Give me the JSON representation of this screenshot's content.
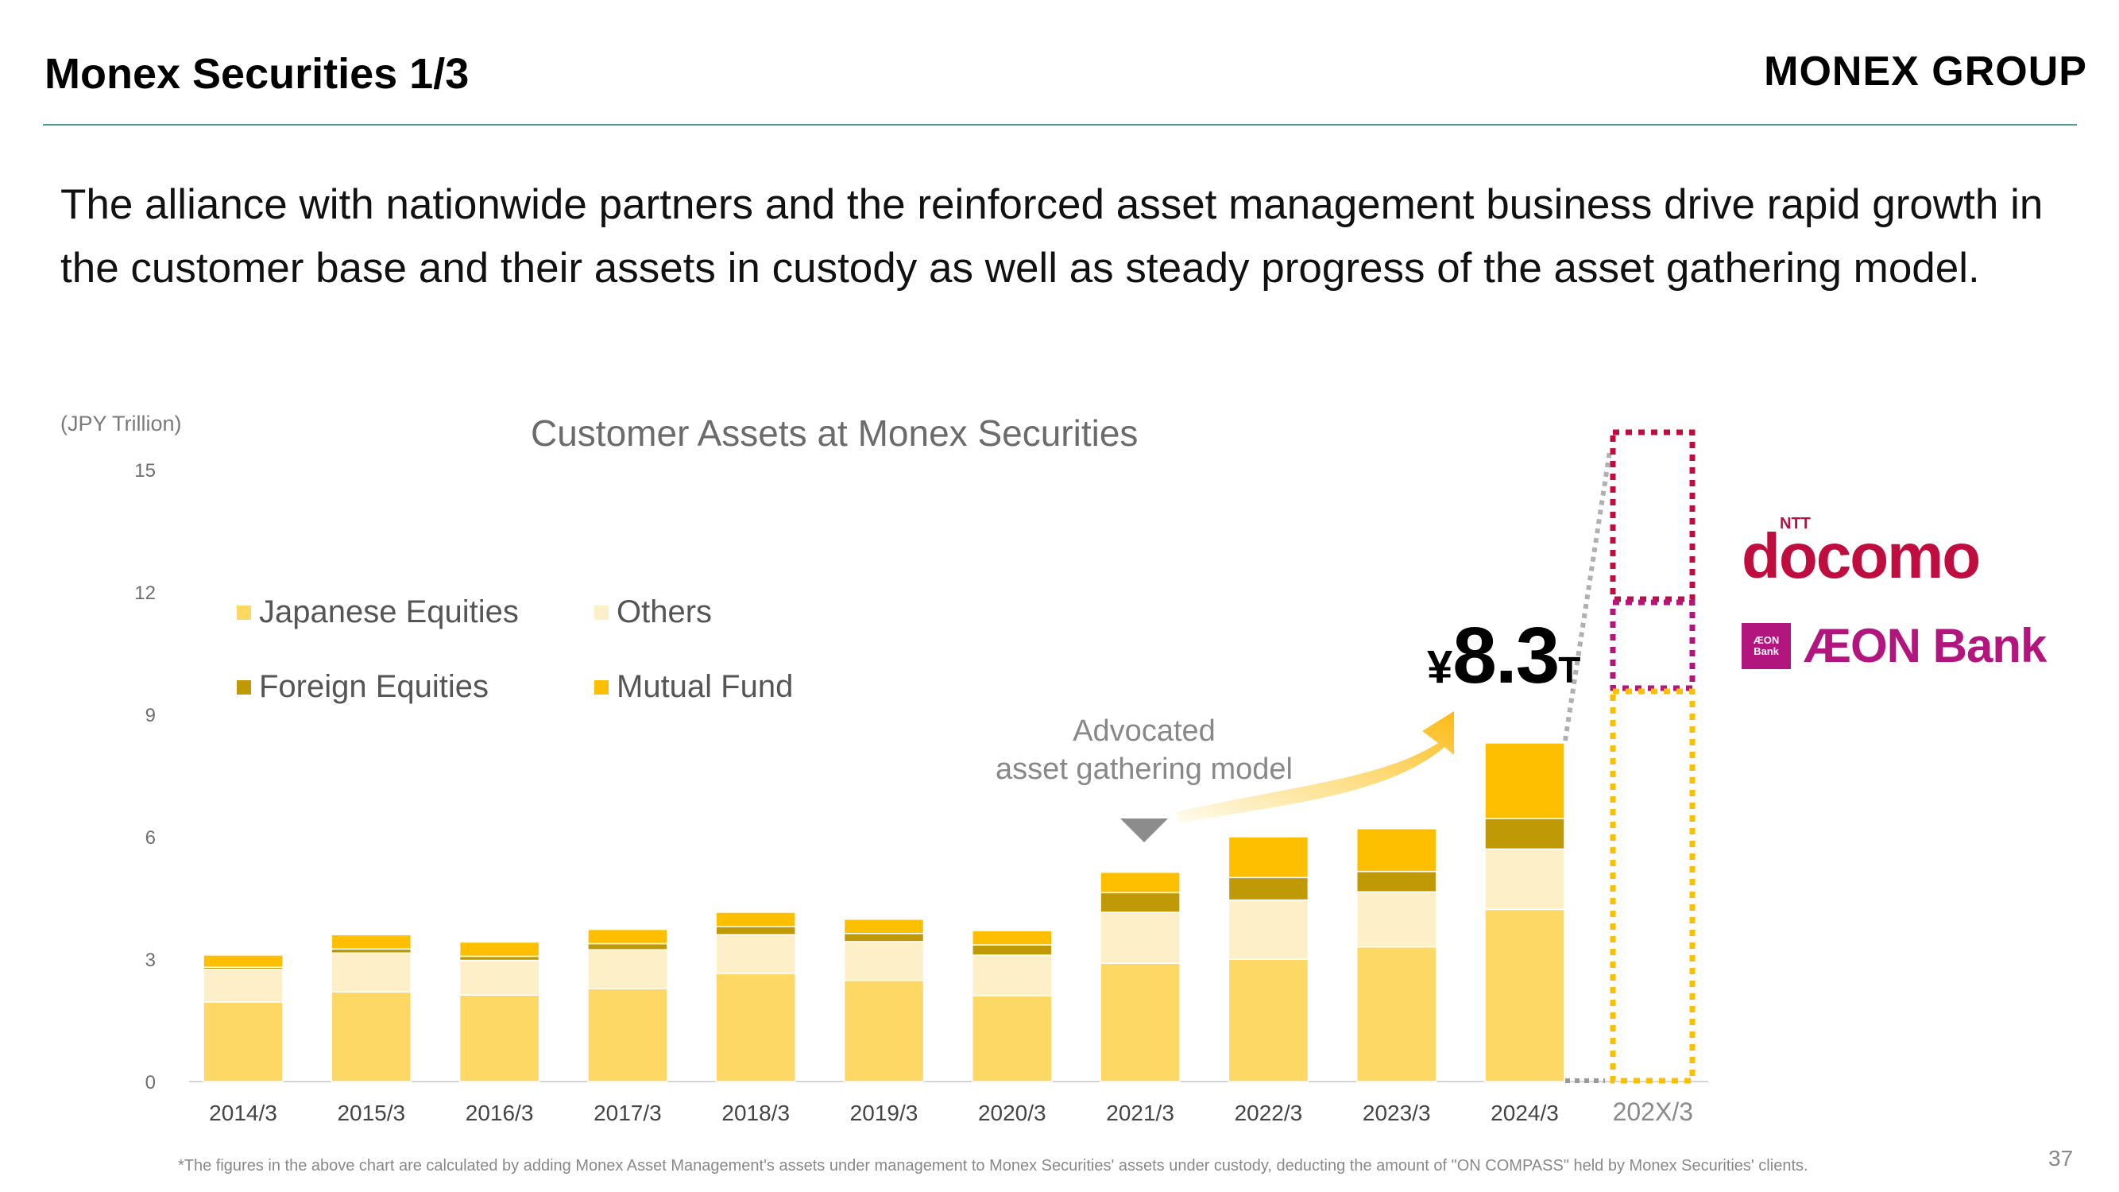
{
  "slide": {
    "title": "Monex Securities 1/3",
    "brand": "MONEX GROUP",
    "lead": "The alliance with nationwide partners and the reinforced asset management business drive rapid growth in the customer base and their assets in custody as well as steady progress of the asset gathering model.",
    "footnote": "*The figures in the above chart are calculated by adding Monex Asset Management's assets under management to Monex Securities' assets under custody, deducting the amount of \"ON COMPASS\" held by Monex Securities' clients.",
    "page_number": "37"
  },
  "annotations": {
    "model": "Advocated\nasset gathering model",
    "total_prefix": "¥",
    "total_value": "8.3",
    "total_suffix": "T"
  },
  "partners": {
    "docomo_top": "NTT",
    "docomo": "docomo",
    "aeon_box": "ÆON\nBank",
    "aeon": "ÆON Bank"
  },
  "colors": {
    "japanese_equities": "#fdd865",
    "others": "#fdf0c8",
    "foreign_equities": "#c09a06",
    "mutual_fund": "#fdbf00",
    "docomo": "#c00d3f",
    "aeon": "#b3157e",
    "rule": "#4f9a94"
  },
  "chart_data": {
    "type": "bar",
    "stacked": true,
    "title": "Customer Assets at Monex Securities",
    "ylabel": "(JPY Trillion)",
    "xlabel": "",
    "ylim": [
      0,
      15
    ],
    "yticks": [
      0,
      3,
      6,
      9,
      12,
      15
    ],
    "grid": false,
    "legend_position": "top-left",
    "categories": [
      "2014/3",
      "2015/3",
      "2016/3",
      "2017/3",
      "2018/3",
      "2019/3",
      "2020/3",
      "2021/3",
      "2022/3",
      "2023/3",
      "2024/3",
      "202X/3"
    ],
    "series": [
      {
        "name": "Japanese Equities",
        "values": [
          1.95,
          2.2,
          2.12,
          2.28,
          2.65,
          2.48,
          2.1,
          2.9,
          3.0,
          3.3,
          4.22,
          null
        ]
      },
      {
        "name": "Others",
        "values": [
          0.8,
          0.95,
          0.85,
          0.95,
          0.95,
          0.95,
          1.0,
          1.25,
          1.45,
          1.35,
          1.48,
          null
        ]
      },
      {
        "name": "Foreign Equities",
        "values": [
          0.05,
          0.1,
          0.1,
          0.15,
          0.2,
          0.2,
          0.25,
          0.48,
          0.55,
          0.5,
          0.75,
          null
        ]
      },
      {
        "name": "Mutual Fund",
        "values": [
          0.3,
          0.35,
          0.35,
          0.35,
          0.35,
          0.35,
          0.35,
          0.5,
          1.0,
          1.05,
          1.85,
          null
        ]
      }
    ]
  }
}
